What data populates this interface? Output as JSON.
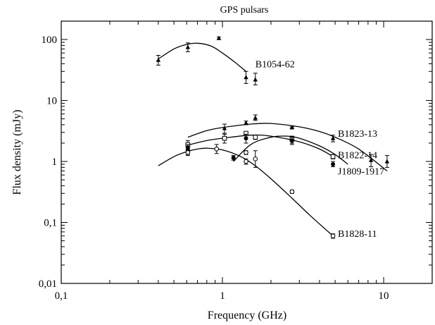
{
  "chart_data": {
    "type": "scatter",
    "title": "GPS pulsars",
    "xlabel": "Frequency (GHz)",
    "ylabel": "Flux density (mJy)",
    "xscale": "log",
    "yscale": "log",
    "xlim": [
      0.1,
      20
    ],
    "ylim": [
      0.01,
      200
    ],
    "xticks": [
      0.1,
      1,
      10
    ],
    "xtick_labels": [
      "0,1",
      "1",
      "10"
    ],
    "yticks": [
      0.01,
      0.1,
      1,
      10,
      100
    ],
    "ytick_labels": [
      "0,01",
      "0,1",
      "1",
      "10",
      "100"
    ],
    "grid": false,
    "legend": "none",
    "series": [
      {
        "name": "B1054-62",
        "marker": "triangle",
        "points": [
          {
            "x": 0.4,
            "y": 46,
            "lo": 38,
            "hi": 55
          },
          {
            "x": 0.61,
            "y": 75,
            "lo": 63,
            "hi": 88
          },
          {
            "x": 0.95,
            "y": 105,
            "lo": 100,
            "hi": 110
          },
          {
            "x": 1.4,
            "y": 24,
            "lo": 19,
            "hi": 30
          },
          {
            "x": 1.6,
            "y": 22,
            "lo": 18,
            "hi": 28
          }
        ],
        "curve": {
          "x": [
            0.4,
            0.5,
            0.6,
            0.7,
            0.85,
            1.0,
            1.2,
            1.4
          ],
          "y": [
            48,
            70,
            83,
            87,
            78,
            60,
            42,
            30
          ]
        }
      },
      {
        "name": "B1823-13",
        "marker": "triangle",
        "points": [
          {
            "x": 0.61,
            "y": 1.6,
            "lo": 1.3,
            "hi": 2.0
          },
          {
            "x": 1.03,
            "y": 3.5,
            "lo": 2.9,
            "hi": 4.1
          },
          {
            "x": 1.4,
            "y": 4.3,
            "lo": 4.0,
            "hi": 4.6
          },
          {
            "x": 1.6,
            "y": 5.2,
            "lo": 4.7,
            "hi": 5.8
          },
          {
            "x": 2.7,
            "y": 3.6,
            "lo": 3.5,
            "hi": 3.7
          },
          {
            "x": 4.85,
            "y": 2.4,
            "lo": 2.1,
            "hi": 2.7
          },
          {
            "x": 8.35,
            "y": 1.05,
            "lo": 0.82,
            "hi": 1.3
          },
          {
            "x": 10.5,
            "y": 1.0,
            "lo": 0.8,
            "hi": 1.25
          }
        ],
        "curve": {
          "x": [
            0.61,
            0.8,
            1.0,
            1.5,
            2.0,
            3.0,
            4.0,
            5.0,
            7.0,
            10.5
          ],
          "y": [
            2.5,
            3.2,
            3.6,
            4.1,
            4.2,
            3.7,
            3.1,
            2.5,
            1.6,
            0.7
          ]
        }
      },
      {
        "name": "B1822-14",
        "marker": "square",
        "points": [
          {
            "x": 0.61,
            "y": 1.9,
            "lo": 1.6,
            "hi": 2.2
          },
          {
            "x": 1.03,
            "y": 2.4,
            "lo": 2.0,
            "hi": 2.8
          },
          {
            "x": 1.4,
            "y": 2.9,
            "lo": 2.7,
            "hi": 3.1
          },
          {
            "x": 1.6,
            "y": 2.5,
            "lo": 2.3,
            "hi": 2.7
          },
          {
            "x": 2.7,
            "y": 2.3,
            "lo": 2.0,
            "hi": 2.6
          },
          {
            "x": 4.85,
            "y": 1.2,
            "lo": 1.1,
            "hi": 1.3
          }
        ],
        "curve": {
          "x": [
            0.61,
            0.8,
            1.0,
            1.5,
            2.0,
            3.0,
            4.0,
            4.85
          ],
          "y": [
            1.85,
            2.2,
            2.4,
            2.7,
            2.6,
            2.1,
            1.6,
            1.2
          ]
        }
      },
      {
        "name": "J1809-1917",
        "marker": "circle-filled",
        "points": [
          {
            "x": 0.61,
            "y": 1.7,
            "lo": 1.5,
            "hi": 1.9
          },
          {
            "x": 1.17,
            "y": 1.15,
            "lo": 1.05,
            "hi": 1.25
          },
          {
            "x": 1.4,
            "y": 2.4,
            "lo": 2.0,
            "hi": 2.8
          },
          {
            "x": 2.7,
            "y": 2.2,
            "lo": 1.9,
            "hi": 2.5
          },
          {
            "x": 4.85,
            "y": 0.9,
            "lo": 0.82,
            "hi": 1.0
          }
        ],
        "curve": {
          "x": [
            1.17,
            1.5,
            2.0,
            2.5,
            3.0,
            4.0,
            5.0,
            6.0
          ],
          "y": [
            1.0,
            1.9,
            2.5,
            2.6,
            2.4,
            1.8,
            1.3,
            0.9
          ]
        }
      },
      {
        "name": "B1828-11",
        "marker": "circle-open",
        "points": [
          {
            "x": 0.61,
            "y": 1.4,
            "lo": 1.25,
            "hi": 1.55
          },
          {
            "x": 0.92,
            "y": 1.6,
            "lo": 1.35,
            "hi": 1.9
          },
          {
            "x": 1.4,
            "y": 1.0,
            "lo": 0.9,
            "hi": 1.1
          },
          {
            "x": 1.4,
            "y": 1.4,
            "lo": 1.3,
            "hi": 1.5
          },
          {
            "x": 1.6,
            "y": 1.1,
            "lo": 0.8,
            "hi": 1.5
          },
          {
            "x": 2.7,
            "y": 0.32,
            "lo": 0.3,
            "hi": 0.34
          },
          {
            "x": 4.85,
            "y": 0.06,
            "lo": 0.055,
            "hi": 0.065
          }
        ],
        "curve": {
          "x": [
            0.4,
            0.5,
            0.6,
            0.7,
            0.8,
            1.0,
            1.3,
            1.6,
            2.0,
            2.7,
            3.5,
            4.85
          ],
          "y": [
            0.85,
            1.2,
            1.45,
            1.6,
            1.65,
            1.55,
            1.2,
            0.85,
            0.52,
            0.25,
            0.13,
            0.06
          ]
        }
      }
    ],
    "annotations": [
      {
        "text": "B1054-62",
        "x": 1.6,
        "y": 40
      },
      {
        "text": "B1823-13",
        "x": 5.2,
        "y": 2.9
      },
      {
        "text": "B1822-14",
        "x": 5.2,
        "y": 1.28
      },
      {
        "text": "J1809-1917",
        "x": 5.2,
        "y": 0.7
      },
      {
        "text": "B1828-11",
        "x": 5.2,
        "y": 0.066
      }
    ]
  }
}
